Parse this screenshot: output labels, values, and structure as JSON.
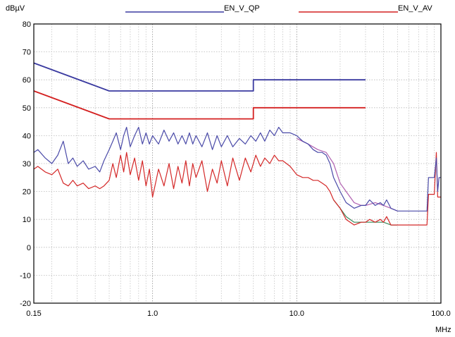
{
  "chart_data": {
    "type": "line",
    "ylabel": "dBµV",
    "xlabel": "MHz",
    "xscale": "log",
    "xlim": [
      0.15,
      100.0
    ],
    "ylim": [
      -20,
      80
    ],
    "grid": true,
    "legend_position": "top",
    "x_ticks": [
      "0.15",
      "1.0",
      "10.0",
      "100.0"
    ],
    "y_ticks": [
      "80",
      "70",
      "60",
      "50",
      "40",
      "30",
      "20",
      "10",
      "0",
      "-10",
      "-20"
    ],
    "series": [
      {
        "name": "EN_V_QP",
        "role": "limit",
        "color": "#3a3aa0",
        "points": [
          [
            0.15,
            66
          ],
          [
            0.5,
            56
          ],
          [
            5,
            56
          ],
          [
            5,
            60
          ],
          [
            30,
            60
          ]
        ]
      },
      {
        "name": "EN_V_AV",
        "role": "limit",
        "color": "#d42020",
        "points": [
          [
            0.15,
            56
          ],
          [
            0.5,
            46
          ],
          [
            5,
            46
          ],
          [
            5,
            50
          ],
          [
            30,
            50
          ]
        ]
      },
      {
        "role": "measurement-peak",
        "color": "#4a4aa8",
        "points": [
          [
            0.15,
            34
          ],
          [
            0.16,
            35
          ],
          [
            0.18,
            32
          ],
          [
            0.2,
            30
          ],
          [
            0.22,
            33
          ],
          [
            0.24,
            38
          ],
          [
            0.26,
            30
          ],
          [
            0.28,
            32
          ],
          [
            0.3,
            29
          ],
          [
            0.33,
            31
          ],
          [
            0.36,
            28
          ],
          [
            0.4,
            29
          ],
          [
            0.43,
            27
          ],
          [
            0.46,
            31
          ],
          [
            0.5,
            35
          ],
          [
            0.53,
            38
          ],
          [
            0.56,
            41
          ],
          [
            0.6,
            35
          ],
          [
            0.63,
            40
          ],
          [
            0.66,
            43
          ],
          [
            0.7,
            36
          ],
          [
            0.75,
            40
          ],
          [
            0.8,
            43
          ],
          [
            0.85,
            37
          ],
          [
            0.9,
            41
          ],
          [
            0.95,
            37
          ],
          [
            1.0,
            40
          ],
          [
            1.1,
            37
          ],
          [
            1.2,
            42
          ],
          [
            1.3,
            38
          ],
          [
            1.4,
            41
          ],
          [
            1.5,
            37
          ],
          [
            1.6,
            40
          ],
          [
            1.7,
            37
          ],
          [
            1.8,
            41
          ],
          [
            1.9,
            37
          ],
          [
            2.0,
            40
          ],
          [
            2.2,
            36
          ],
          [
            2.4,
            41
          ],
          [
            2.6,
            35
          ],
          [
            2.8,
            40
          ],
          [
            3.0,
            36
          ],
          [
            3.3,
            40
          ],
          [
            3.6,
            36
          ],
          [
            4.0,
            39
          ],
          [
            4.4,
            37
          ],
          [
            4.8,
            40
          ],
          [
            5.2,
            38
          ],
          [
            5.6,
            41
          ],
          [
            6.0,
            38
          ],
          [
            6.5,
            42
          ],
          [
            7.0,
            40
          ],
          [
            7.5,
            43
          ],
          [
            8.0,
            41
          ],
          [
            9.0,
            41
          ],
          [
            10.0,
            40
          ],
          [
            11.0,
            38
          ],
          [
            12.0,
            37
          ],
          [
            13.0,
            35
          ],
          [
            14.0,
            34
          ],
          [
            15.0,
            34
          ],
          [
            16.0,
            33
          ],
          [
            17.0,
            30
          ],
          [
            18.0,
            25
          ],
          [
            20.0,
            20
          ],
          [
            22.0,
            16
          ],
          [
            25.0,
            14
          ],
          [
            28.0,
            15
          ],
          [
            30.0,
            15
          ],
          [
            32.0,
            17
          ],
          [
            35.0,
            15
          ],
          [
            38.0,
            16
          ],
          [
            40.0,
            15
          ],
          [
            42.0,
            17
          ],
          [
            45.0,
            14
          ],
          [
            50.0,
            13
          ],
          [
            60.0,
            13
          ],
          [
            70.0,
            13
          ],
          [
            80.0,
            13
          ],
          [
            82.0,
            25
          ],
          [
            90.0,
            25
          ],
          [
            93.0,
            32
          ],
          [
            95.0,
            20
          ],
          [
            97.0,
            25
          ],
          [
            100.0,
            25
          ]
        ]
      },
      {
        "role": "measurement-qp",
        "color": "#b060b0",
        "points": [
          [
            10.0,
            39
          ],
          [
            12.0,
            37
          ],
          [
            14.0,
            35
          ],
          [
            16.0,
            34
          ],
          [
            18.0,
            30
          ],
          [
            20.0,
            23
          ],
          [
            22.0,
            20
          ],
          [
            25.0,
            16
          ],
          [
            28.0,
            15
          ],
          [
            30.0,
            15
          ],
          [
            35.0,
            16
          ],
          [
            40.0,
            15
          ],
          [
            45.0,
            14
          ],
          [
            50.0,
            13
          ]
        ]
      },
      {
        "role": "measurement-average",
        "color": "#d42828",
        "points": [
          [
            0.15,
            28
          ],
          [
            0.16,
            29
          ],
          [
            0.18,
            27
          ],
          [
            0.2,
            26
          ],
          [
            0.22,
            28
          ],
          [
            0.24,
            23
          ],
          [
            0.26,
            22
          ],
          [
            0.28,
            24
          ],
          [
            0.3,
            22
          ],
          [
            0.33,
            23
          ],
          [
            0.36,
            21
          ],
          [
            0.4,
            22
          ],
          [
            0.43,
            21
          ],
          [
            0.46,
            22
          ],
          [
            0.5,
            24
          ],
          [
            0.53,
            30
          ],
          [
            0.56,
            25
          ],
          [
            0.6,
            33
          ],
          [
            0.63,
            27
          ],
          [
            0.66,
            34
          ],
          [
            0.7,
            26
          ],
          [
            0.75,
            32
          ],
          [
            0.8,
            24
          ],
          [
            0.85,
            31
          ],
          [
            0.9,
            22
          ],
          [
            0.95,
            28
          ],
          [
            1.0,
            18
          ],
          [
            1.1,
            28
          ],
          [
            1.2,
            22
          ],
          [
            1.3,
            30
          ],
          [
            1.4,
            21
          ],
          [
            1.5,
            29
          ],
          [
            1.6,
            23
          ],
          [
            1.7,
            31
          ],
          [
            1.8,
            22
          ],
          [
            1.9,
            30
          ],
          [
            2.0,
            25
          ],
          [
            2.2,
            31
          ],
          [
            2.4,
            20
          ],
          [
            2.6,
            28
          ],
          [
            2.8,
            23
          ],
          [
            3.0,
            31
          ],
          [
            3.3,
            22
          ],
          [
            3.6,
            32
          ],
          [
            4.0,
            24
          ],
          [
            4.4,
            32
          ],
          [
            4.8,
            27
          ],
          [
            5.2,
            33
          ],
          [
            5.6,
            29
          ],
          [
            6.0,
            32
          ],
          [
            6.5,
            30
          ],
          [
            7.0,
            33
          ],
          [
            7.5,
            31
          ],
          [
            8.0,
            31
          ],
          [
            9.0,
            29
          ],
          [
            10.0,
            26
          ],
          [
            11.0,
            25
          ],
          [
            12.0,
            25
          ],
          [
            13.0,
            24
          ],
          [
            14.0,
            24
          ],
          [
            15.0,
            23
          ],
          [
            16.0,
            22
          ],
          [
            17.0,
            20
          ],
          [
            18.0,
            17
          ],
          [
            20.0,
            14
          ],
          [
            22.0,
            10
          ],
          [
            25.0,
            8
          ],
          [
            28.0,
            9
          ],
          [
            30.0,
            9
          ],
          [
            32.0,
            10
          ],
          [
            35.0,
            9
          ],
          [
            38.0,
            10
          ],
          [
            40.0,
            9
          ],
          [
            42.0,
            11
          ],
          [
            45.0,
            8
          ],
          [
            50.0,
            8
          ],
          [
            60.0,
            8
          ],
          [
            70.0,
            8
          ],
          [
            80.0,
            8
          ],
          [
            82.0,
            19
          ],
          [
            90.0,
            19
          ],
          [
            93.0,
            34
          ],
          [
            95.0,
            18
          ],
          [
            100.0,
            18
          ]
        ]
      },
      {
        "role": "measurement-average-green",
        "color": "#3a8a5a",
        "points": [
          [
            18.0,
            17
          ],
          [
            20.0,
            14
          ],
          [
            22.0,
            11
          ],
          [
            25.0,
            9
          ],
          [
            28.0,
            9
          ],
          [
            30.0,
            9
          ],
          [
            35.0,
            9
          ],
          [
            40.0,
            9
          ],
          [
            45.0,
            8
          ],
          [
            50.0,
            8
          ]
        ]
      }
    ]
  }
}
